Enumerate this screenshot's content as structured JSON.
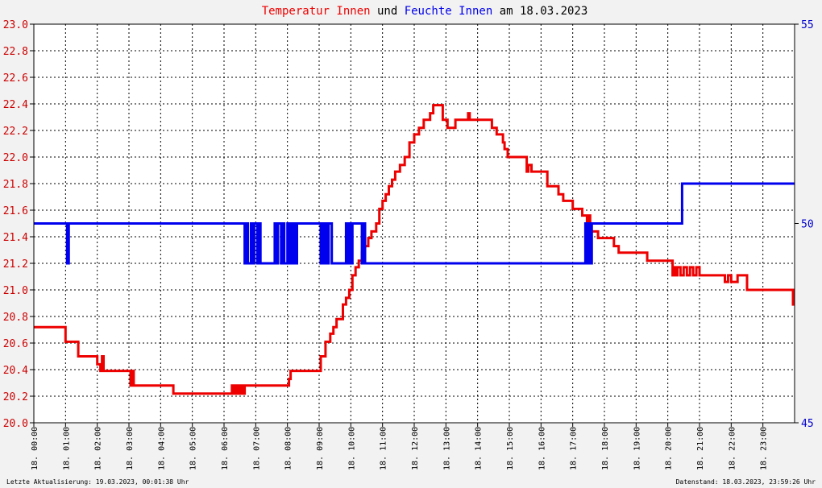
{
  "chart_data": {
    "type": "line",
    "title": {
      "parts": [
        {
          "text": "Temperatur Innen",
          "color": "#ee0000"
        },
        {
          "text": " und ",
          "color": "#000000"
        },
        {
          "text": "Feuchte Innen",
          "color": "#0000ee"
        },
        {
          "text": " am 18.03.2023",
          "color": "#000000"
        }
      ]
    },
    "left_axis": {
      "ylim": [
        20.0,
        23.0
      ],
      "ticks": [
        "20.0",
        "20.2",
        "20.4",
        "20.6",
        "20.8",
        "21.0",
        "21.2",
        "21.4",
        "21.6",
        "21.8",
        "22.0",
        "22.2",
        "22.4",
        "22.6",
        "22.8",
        "23.0"
      ],
      "color": "#cc0000"
    },
    "right_axis": {
      "ylim": [
        45,
        55
      ],
      "ticks": [
        "45",
        "50",
        "55"
      ],
      "color": "#0000cc"
    },
    "x_axis": {
      "xlim": [
        0,
        24
      ],
      "tick_labels": [
        "18. 00:00",
        "18. 01:00",
        "18. 02:00",
        "18. 03:00",
        "18. 04:00",
        "18. 05:00",
        "18. 06:00",
        "18. 07:00",
        "18. 08:00",
        "18. 09:00",
        "18. 10:00",
        "18. 11:00",
        "18. 12:00",
        "18. 13:00",
        "18. 14:00",
        "18. 15:00",
        "18. 16:00",
        "18. 17:00",
        "18. 18:00",
        "18. 19:00",
        "18. 20:00",
        "18. 21:00",
        "18. 22:00",
        "18. 23:00"
      ]
    },
    "grid": true,
    "series": [
      {
        "name": "Temperatur Innen",
        "axis": "left",
        "color": "#ee0000",
        "x": [
          0,
          0.95,
          1.0,
          1.35,
          1.4,
          1.95,
          2.0,
          2.1,
          2.15,
          2.2,
          2.25,
          3.0,
          3.05,
          3.1,
          3.15,
          3.2,
          4.0,
          4.05,
          4.1,
          4.15,
          4.3,
          4.4,
          4.45,
          6.2,
          6.25,
          6.3,
          6.35,
          6.4,
          6.45,
          6.5,
          6.55,
          6.6,
          6.65,
          6.7,
          7.0,
          8.0,
          8.05,
          8.1,
          8.3,
          8.85,
          9.05,
          9.2,
          9.35,
          9.45,
          9.55,
          9.65,
          9.75,
          9.85,
          9.95,
          10.05,
          10.15,
          10.25,
          10.35,
          10.45,
          10.55,
          10.65,
          10.8,
          10.9,
          11.0,
          11.1,
          11.2,
          11.3,
          11.4,
          11.55,
          11.7,
          11.85,
          12.0,
          12.15,
          12.3,
          12.5,
          12.6,
          12.9,
          13.05,
          13.3,
          13.45,
          13.7,
          13.75,
          13.85,
          14.45,
          14.6,
          14.8,
          14.85,
          14.95,
          15.0,
          15.5,
          15.55,
          15.6,
          15.7,
          16.1,
          16.2,
          16.5,
          16.55,
          16.65,
          16.7,
          17.0,
          17.1,
          17.3,
          17.45,
          17.5,
          17.55,
          17.7,
          17.8,
          18.3,
          18.45,
          19.2,
          19.35,
          19.5,
          20.1,
          20.15,
          20.2,
          20.25,
          20.3,
          20.4,
          20.5,
          20.6,
          20.7,
          20.8,
          20.9,
          21.0,
          21.5,
          21.6,
          21.7,
          21.8,
          21.9,
          22.0,
          22.2,
          22.5,
          22.9,
          23.3,
          23.6,
          23.95,
          24.0
        ],
        "y": [
          20.72,
          20.72,
          20.61,
          20.61,
          20.5,
          20.5,
          20.44,
          20.39,
          20.5,
          20.39,
          20.39,
          20.39,
          20.28,
          20.39,
          20.28,
          20.28,
          20.28,
          20.28,
          20.28,
          20.28,
          20.28,
          20.22,
          20.22,
          20.22,
          20.28,
          20.22,
          20.28,
          20.22,
          20.28,
          20.22,
          20.28,
          20.22,
          20.28,
          20.28,
          20.28,
          20.28,
          20.33,
          20.39,
          20.39,
          20.39,
          20.5,
          20.61,
          20.67,
          20.72,
          20.78,
          20.78,
          20.89,
          20.94,
          21.0,
          21.11,
          21.17,
          21.22,
          21.28,
          21.33,
          21.39,
          21.44,
          21.5,
          21.61,
          21.67,
          21.72,
          21.78,
          21.83,
          21.89,
          21.94,
          22.0,
          22.11,
          22.17,
          22.22,
          22.28,
          22.33,
          22.39,
          22.28,
          22.22,
          22.28,
          22.28,
          22.33,
          22.28,
          22.28,
          22.22,
          22.17,
          22.11,
          22.06,
          22.0,
          22.0,
          22.0,
          21.89,
          21.94,
          21.89,
          21.89,
          21.78,
          21.78,
          21.72,
          21.72,
          21.67,
          21.61,
          21.61,
          21.56,
          21.5,
          21.56,
          21.44,
          21.44,
          21.39,
          21.33,
          21.28,
          21.28,
          21.22,
          21.22,
          21.22,
          21.11,
          21.17,
          21.11,
          21.17,
          21.11,
          21.17,
          21.11,
          21.17,
          21.11,
          21.17,
          21.11,
          21.11,
          21.11,
          21.11,
          21.06,
          21.11,
          21.06,
          21.11,
          21.0,
          21.0,
          21.0,
          21.0,
          20.89,
          20.89
        ]
      },
      {
        "name": "Feuchte Innen",
        "axis": "right",
        "color": "#0000ee",
        "x": [
          0,
          1.0,
          1.05,
          1.1,
          6.6,
          6.65,
          6.7,
          6.75,
          6.85,
          6.9,
          6.95,
          7.05,
          7.1,
          7.15,
          7.25,
          7.5,
          7.6,
          7.65,
          7.7,
          7.8,
          7.85,
          7.9,
          8.0,
          8.05,
          8.1,
          8.15,
          8.2,
          8.25,
          8.3,
          8.4,
          9.0,
          9.05,
          9.1,
          9.15,
          9.2,
          9.25,
          9.3,
          9.4,
          9.5,
          9.6,
          9.8,
          9.85,
          9.9,
          9.95,
          10.0,
          10.05,
          10.2,
          10.3,
          10.35,
          10.4,
          10.45,
          10.5,
          11.0,
          12.0,
          13.0,
          14.0,
          15.0,
          16.0,
          17.0,
          17.3,
          17.4,
          17.45,
          17.5,
          17.55,
          17.6,
          18.0,
          19.0,
          20.0,
          20.4,
          20.45,
          20.5,
          21.0,
          22.0,
          23.0,
          24.0
        ],
        "y": [
          50,
          50,
          49,
          50,
          50,
          49,
          50,
          49,
          50,
          49,
          50,
          49,
          50,
          49,
          49,
          49,
          50,
          49,
          50,
          49,
          50,
          49,
          50,
          49,
          50,
          49,
          50,
          49,
          50,
          50,
          50,
          49,
          50,
          49,
          50,
          49,
          50,
          49,
          49,
          49,
          49,
          50,
          49,
          50,
          49,
          50,
          50,
          50,
          49,
          50,
          49,
          49,
          49,
          49,
          49,
          49,
          49,
          49,
          49,
          49,
          50,
          49,
          50,
          49,
          50,
          50,
          50,
          50,
          50,
          51,
          51,
          51,
          51,
          51,
          51
        ]
      }
    ]
  },
  "footer": {
    "left": "Letzte Aktualisierung: 19.03.2023, 00:01:38 Uhr",
    "right": "Datenstand: 18.03.2023, 23:59:26 Uhr"
  }
}
